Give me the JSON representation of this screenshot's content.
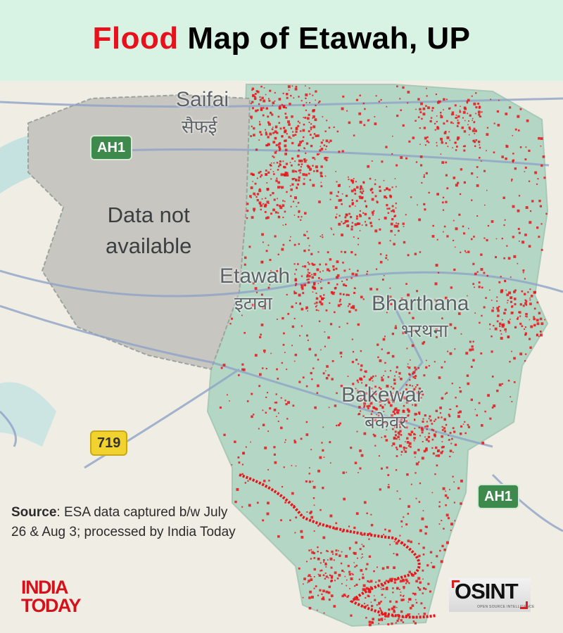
{
  "header": {
    "title_highlight": "Flood",
    "title_rest": " Map of Etawah, UP"
  },
  "map": {
    "places": [
      {
        "name": "Saifai",
        "local": "सैफई"
      },
      {
        "name": "Etawah",
        "local": "इटावा"
      },
      {
        "name": "Bharthana",
        "local": "भरथना"
      },
      {
        "name": "Bakewar",
        "local": "बकेवर"
      }
    ],
    "no_data_label": [
      "Data not",
      "available"
    ],
    "road_badges": {
      "ah1_top": "AH1",
      "ah1_bottom": "AH1",
      "nh": "719"
    },
    "colors": {
      "flood": "#e8141a",
      "district": "#b4d6c4",
      "no_data": "#c8c6c0",
      "background": "#efede4",
      "header": "#d8f2e4"
    }
  },
  "source": {
    "label": "Source",
    "text": ": ESA data captured b/w July 26 & Aug 3; processed by India Today"
  },
  "logos": {
    "india_today": [
      "INDIA",
      "TODAY"
    ],
    "osint": {
      "word": "OSINT",
      "tagline": "OPEN SOURCE INTELLIGENCE"
    }
  }
}
